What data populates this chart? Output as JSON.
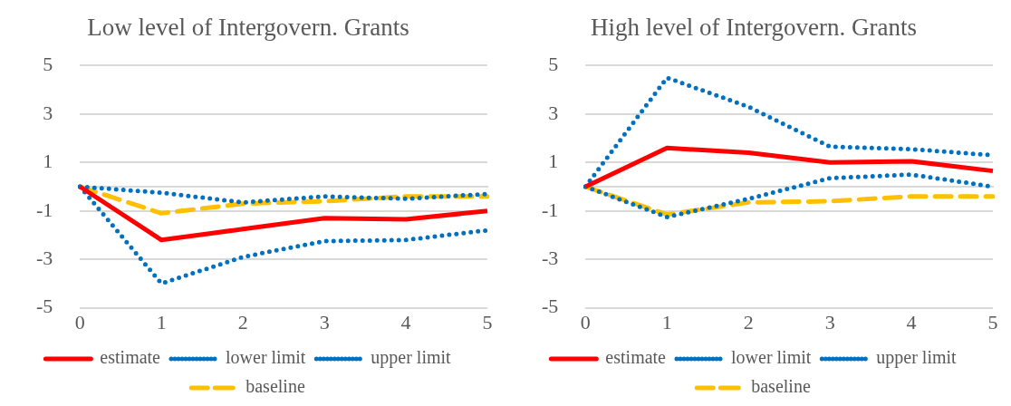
{
  "chart_data": [
    {
      "type": "line",
      "title": "Low level of Intergovern. Grants",
      "categories": [
        "0",
        "1",
        "2",
        "3",
        "4",
        "5"
      ],
      "ylim": [
        -5,
        5
      ],
      "yticks": [
        -5,
        -3,
        -1,
        1,
        3,
        5
      ],
      "grid": "y",
      "legend": "bottom",
      "marker": "none",
      "series": [
        {
          "name": "estimate",
          "color": "#ff0000",
          "line_style": "solid",
          "values": [
            0,
            -2.2,
            -1.75,
            -1.3,
            -1.35,
            -1.0
          ]
        },
        {
          "name": "lower limit",
          "color": "#0070c0",
          "line_style": "dotted",
          "values": [
            0,
            -4.0,
            -2.9,
            -2.25,
            -2.2,
            -1.8
          ]
        },
        {
          "name": "upper limit",
          "color": "#0070c0",
          "line_style": "dotted",
          "values": [
            0,
            -0.25,
            -0.65,
            -0.4,
            -0.5,
            -0.3
          ]
        },
        {
          "name": "baseline",
          "color": "#ffc000",
          "line_style": "dashed",
          "values": [
            0,
            -1.1,
            -0.7,
            -0.6,
            -0.4,
            -0.4
          ]
        }
      ]
    },
    {
      "type": "line",
      "title": "High level of Intergovern. Grants",
      "categories": [
        "0",
        "1",
        "2",
        "3",
        "4",
        "5"
      ],
      "ylim": [
        -5,
        5
      ],
      "yticks": [
        -5,
        -3,
        -1,
        1,
        3,
        5
      ],
      "grid": "y",
      "legend": "bottom",
      "marker": "none",
      "series": [
        {
          "name": "estimate",
          "color": "#ff0000",
          "line_style": "solid",
          "values": [
            0,
            1.6,
            1.4,
            1.0,
            1.05,
            0.65
          ]
        },
        {
          "name": "lower limit",
          "color": "#0070c0",
          "line_style": "dotted",
          "values": [
            0,
            -1.25,
            -0.5,
            0.35,
            0.5,
            0.0
          ]
        },
        {
          "name": "upper limit",
          "color": "#0070c0",
          "line_style": "dotted",
          "values": [
            0,
            4.5,
            3.3,
            1.65,
            1.55,
            1.3
          ]
        },
        {
          "name": "baseline",
          "color": "#ffc000",
          "line_style": "dashed",
          "values": [
            0,
            -1.15,
            -0.65,
            -0.6,
            -0.4,
            -0.4
          ]
        }
      ]
    }
  ]
}
